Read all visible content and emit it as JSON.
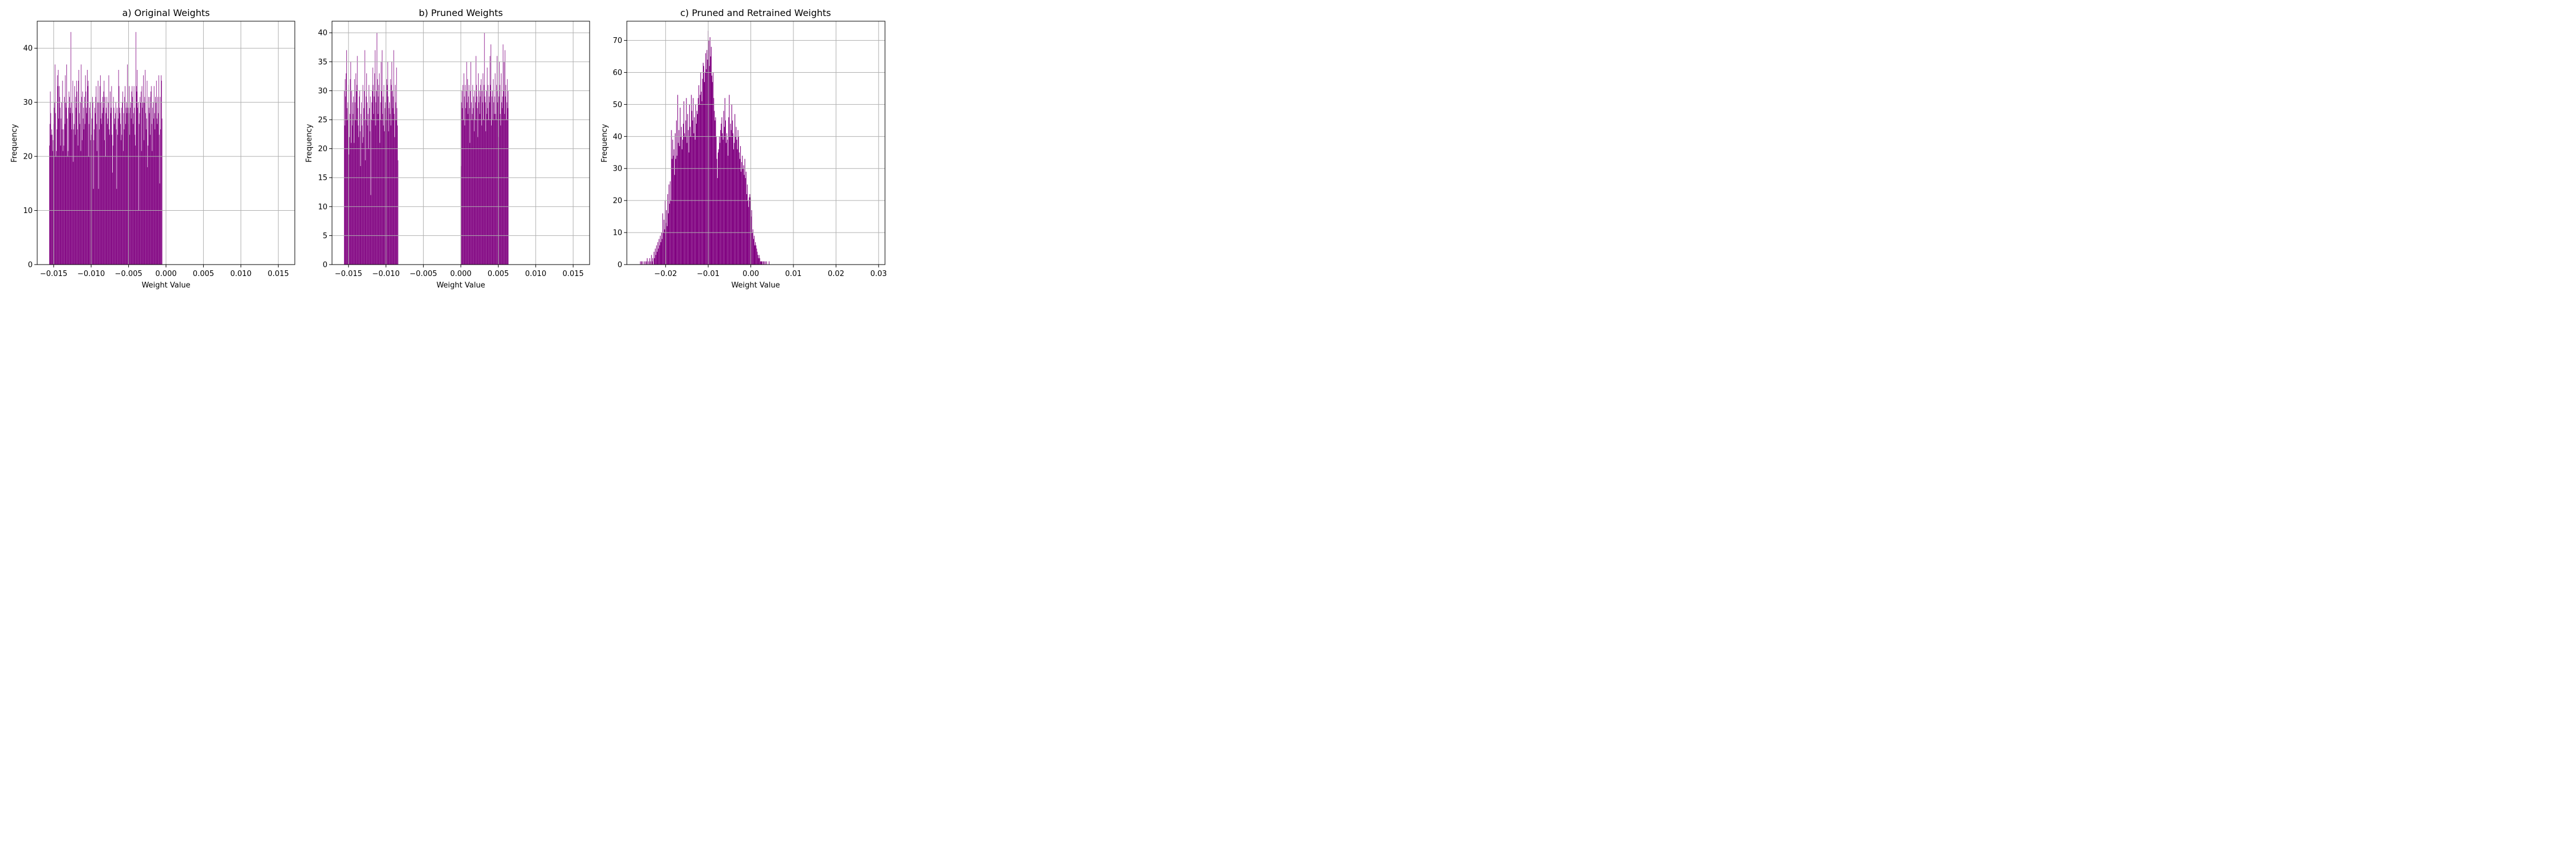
{
  "bar_color": "#800080",
  "grid_color": "#b0b0b0",
  "chart_data": [
    {
      "type": "bar",
      "title": "a) Original Weights",
      "xlabel": "Weight Value",
      "ylabel": "Frequency",
      "xlim": [
        -0.0172,
        0.0172
      ],
      "ylim": [
        0,
        45
      ],
      "grid": true,
      "xticks": [
        -0.015,
        -0.01,
        -0.005,
        0.0,
        0.005,
        0.01,
        0.015
      ],
      "xtick_labels": [
        "−0.015",
        "−0.010",
        "−0.005",
        "0.000",
        "0.005",
        "0.010",
        "0.015"
      ],
      "yticks": [
        0,
        10,
        20,
        30,
        40
      ],
      "ytick_labels": [
        "0",
        "10",
        "20",
        "30",
        "40"
      ],
      "bins": {
        "start": -0.0156,
        "width": 6.24e-05,
        "counts": [
          22,
          26,
          32,
          28,
          24,
          25,
          24,
          21,
          23,
          26,
          29,
          30,
          37,
          28,
          20,
          21,
          25,
          35,
          33,
          36,
          27,
          33,
          31,
          29,
          22,
          27,
          30,
          25,
          34,
          21,
          25,
          22,
          31,
          26,
          35,
          30,
          29,
          37,
          27,
          20,
          21,
          29,
          32,
          31,
          28,
          29,
          43,
          30,
          25,
          28,
          34,
          19,
          25,
          26,
          33,
          24,
          31,
          29,
          34,
          32,
          25,
          22,
          34,
          36,
          28,
          26,
          30,
          21,
          37,
          31,
          23,
          32,
          27,
          29,
          25,
          31,
          26,
          35,
          32,
          29,
          28,
          36,
          33,
          34,
          20,
          26,
          29,
          30,
          23,
          28,
          24,
          27,
          31,
          30,
          14,
          23,
          25,
          29,
          28,
          31,
          33,
          26,
          21,
          30,
          34,
          14,
          30,
          25,
          33,
          35,
          27,
          30,
          26,
          28,
          31,
          29,
          32,
          34,
          23,
          31,
          20,
          28,
          29,
          31,
          26,
          27,
          30,
          35,
          25,
          24,
          32,
          28,
          29,
          33,
          24,
          17,
          22,
          31,
          29,
          26,
          27,
          28,
          30,
          25,
          14,
          29,
          24,
          27,
          36,
          33,
          29,
          28,
          26,
          23,
          29,
          24,
          30,
          32,
          21,
          28,
          25,
          31,
          33,
          26,
          29,
          30,
          28,
          37,
          29,
          26,
          28,
          33,
          24,
          29,
          30,
          27,
          32,
          33,
          31,
          26,
          28,
          33,
          29,
          24,
          22,
          43,
          33,
          32,
          36,
          29,
          30,
          10,
          26,
          28,
          31,
          30,
          32,
          21,
          33,
          29,
          30,
          35,
          23,
          30,
          31,
          36,
          28,
          25,
          27,
          34,
          18,
          22,
          31,
          29,
          28,
          31,
          24,
          32,
          33,
          26,
          21,
          29,
          30,
          27,
          33,
          28,
          25,
          31,
          30,
          34,
          27,
          26,
          31,
          28,
          35,
          24,
          15,
          31,
          25,
          35,
          34,
          27
        ]
      }
    },
    {
      "type": "bar",
      "title": "b) Pruned Weights",
      "xlabel": "Weight Value",
      "ylabel": "Frequency",
      "xlim": [
        -0.0172,
        0.0172
      ],
      "ylim": [
        0,
        42
      ],
      "grid": true,
      "xticks": [
        -0.015,
        -0.01,
        -0.005,
        0.0,
        0.005,
        0.01,
        0.015
      ],
      "xtick_labels": [
        "−0.015",
        "−0.010",
        "−0.005",
        "0.000",
        "0.005",
        "0.010",
        "0.015"
      ],
      "yticks": [
        0,
        5,
        10,
        15,
        20,
        25,
        30,
        35,
        40
      ],
      "ytick_labels": [
        "0",
        "5",
        "10",
        "15",
        "20",
        "25",
        "30",
        "35",
        "40"
      ],
      "bins": {
        "start": -0.0156,
        "width": 6.24e-05,
        "counts": [
          30,
          24,
          32,
          29,
          33,
          37,
          27,
          25,
          28,
          31,
          19,
          22,
          26,
          32,
          35,
          21,
          30,
          24,
          28,
          26,
          29,
          21,
          32,
          28,
          25,
          33,
          30,
          31,
          36,
          27,
          24,
          22,
          29,
          30,
          23,
          17,
          26,
          28,
          24,
          21,
          31,
          22,
          27,
          30,
          37,
          18,
          25,
          29,
          33,
          28,
          24,
          26,
          20,
          31,
          27,
          23,
          29,
          12,
          25,
          28,
          30,
          34,
          31,
          26,
          29,
          33,
          37,
          24,
          28,
          30,
          40,
          32,
          26,
          29,
          31,
          33,
          21,
          25,
          28,
          35,
          30,
          37,
          26,
          29,
          24,
          31,
          23,
          27,
          28,
          30,
          25,
          32,
          31,
          35,
          29,
          23,
          27,
          28,
          26,
          32,
          24,
          31,
          35,
          30,
          27,
          29,
          37,
          26,
          22,
          31,
          28,
          25,
          34,
          27,
          24,
          18,
          0,
          0,
          0,
          0,
          0,
          0,
          0,
          0,
          0,
          0,
          0,
          0,
          0,
          0,
          0,
          0,
          0,
          0,
          0,
          0,
          0,
          0,
          0,
          0,
          0,
          0,
          0,
          0,
          0,
          0,
          0,
          0,
          0,
          0,
          0,
          0,
          0,
          0,
          0,
          0,
          0,
          0,
          0,
          0,
          0,
          0,
          0,
          0,
          0,
          0,
          0,
          0,
          0,
          0,
          0,
          0,
          0,
          0,
          0,
          0,
          0,
          0,
          0,
          0,
          0,
          0,
          0,
          0,
          0,
          0,
          0,
          0,
          0,
          0,
          0,
          0,
          0,
          0,
          0,
          0,
          0,
          0,
          0,
          0,
          0,
          0,
          0,
          0,
          0,
          0,
          0,
          0,
          0,
          0,
          0,
          0,
          0,
          0,
          0,
          0,
          0,
          0,
          0,
          0,
          0,
          0,
          0,
          0,
          0,
          0,
          0,
          0,
          0,
          0,
          0,
          0,
          0,
          0,
          0,
          0,
          0,
          0,
          0,
          0,
          0,
          0,
          0,
          0,
          0,
          0,
          0,
          0,
          0,
          0,
          17,
          28,
          30,
          27,
          31,
          25,
          33,
          29,
          24,
          31,
          27,
          30,
          35,
          28,
          32,
          26,
          29,
          31,
          27,
          21,
          30,
          35,
          28,
          25,
          26,
          31,
          27,
          29,
          23,
          30,
          25,
          28,
          36,
          31,
          29,
          27,
          22,
          33,
          28,
          30,
          26,
          29,
          31,
          32,
          24,
          30,
          28,
          33,
          25,
          31,
          40,
          29,
          28,
          23,
          30,
          26,
          34,
          27,
          31,
          25,
          29,
          28,
          36,
          31,
          38,
          24,
          29,
          30,
          25,
          32,
          28,
          26,
          29,
          33,
          26,
          25,
          31,
          36,
          28,
          30,
          22,
          29,
          35,
          31,
          26,
          24,
          33,
          28,
          27,
          29,
          38,
          30,
          35,
          26,
          37,
          29,
          31,
          25,
          28,
          32,
          27,
          30
        ]
      }
    },
    {
      "type": "bar",
      "title": "c) Pruned and Retrained Weights",
      "xlabel": "Weight Value",
      "ylabel": "Frequency",
      "xlim": [
        -0.0291,
        0.0315
      ],
      "ylim": [
        0,
        76
      ],
      "grid": true,
      "xticks": [
        -0.02,
        -0.01,
        0.0,
        0.01,
        0.02,
        0.03
      ],
      "xtick_labels": [
        "−0.02",
        "−0.01",
        "0.00",
        "0.01",
        "0.02",
        "0.03"
      ],
      "yticks": [
        0,
        10,
        20,
        30,
        40,
        50,
        60,
        70
      ],
      "ytick_labels": [
        "0",
        "10",
        "20",
        "30",
        "40",
        "50",
        "60",
        "70"
      ],
      "bins": {
        "start": -0.026,
        "width": 0.000146,
        "counts": [
          1,
          0,
          1,
          1,
          0,
          0,
          1,
          0,
          1,
          0,
          1,
          2,
          0,
          1,
          0,
          2,
          1,
          0,
          3,
          1,
          2,
          0,
          4,
          2,
          5,
          3,
          6,
          4,
          7,
          5,
          8,
          6,
          9,
          7,
          10,
          8,
          16,
          10,
          14,
          11,
          20,
          13,
          17,
          12,
          22,
          16,
          25,
          19,
          26,
          20,
          42,
          33,
          39,
          34,
          36,
          28,
          41,
          33,
          45,
          34,
          53,
          38,
          42,
          37,
          49,
          40,
          43,
          36,
          39,
          44,
          51,
          41,
          40,
          45,
          52,
          38,
          47,
          42,
          35,
          50,
          43,
          40,
          53,
          48,
          45,
          52,
          41,
          46,
          39,
          50,
          44,
          48,
          47,
          52,
          56,
          50,
          53,
          60,
          54,
          51,
          58,
          63,
          62,
          57,
          60,
          66,
          61,
          67,
          64,
          73,
          70,
          62,
          71,
          65,
          68,
          59,
          57,
          60,
          52,
          48,
          45,
          46,
          40,
          33,
          27,
          35,
          36,
          40,
          38,
          42,
          44,
          46,
          41,
          39,
          48,
          43,
          52,
          45,
          38,
          41,
          39,
          34,
          46,
          53,
          40,
          44,
          42,
          50,
          45,
          41,
          36,
          38,
          47,
          40,
          43,
          39,
          36,
          42,
          40,
          35,
          33,
          37,
          29,
          32,
          34,
          30,
          31,
          28,
          33,
          27,
          29,
          22,
          25,
          20,
          18,
          21,
          22,
          21,
          15,
          17,
          10,
          11,
          8,
          9,
          6,
          7,
          6,
          5,
          4,
          3,
          2,
          3,
          2,
          1,
          1,
          1,
          1,
          0,
          1,
          1,
          0,
          1,
          0,
          1,
          0,
          0,
          0,
          1
        ]
      }
    }
  ]
}
